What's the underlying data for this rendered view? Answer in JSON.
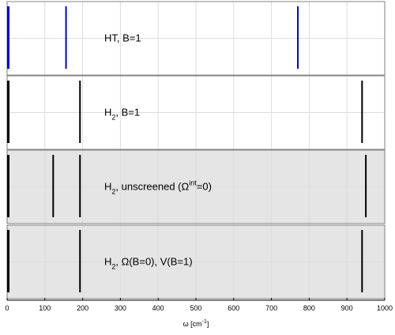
{
  "chart_data": {
    "type": "stacked-stick-spectrum",
    "xlabel_parts": {
      "base": "ω [cm",
      "sup": "-1",
      "end": "]"
    },
    "xlim": [
      0,
      1000
    ],
    "xticks": [
      0,
      100,
      200,
      300,
      400,
      500,
      600,
      700,
      800,
      900,
      1000
    ],
    "grid": true,
    "panels": [
      {
        "label_parts": [
          {
            "t": "HT, B=1"
          }
        ],
        "background": "#ffffff",
        "line_color": "#0000cc",
        "lines": [
          0,
          156,
          770
        ]
      },
      {
        "label_parts": [
          {
            "t": "H"
          },
          {
            "t": "2",
            "sub": true
          },
          {
            "t": ", B=1"
          }
        ],
        "background": "#ffffff",
        "line_color": "#000000",
        "lines": [
          0,
          193,
          940
        ]
      },
      {
        "label_parts": [
          {
            "t": "H"
          },
          {
            "t": "2",
            "sub": true
          },
          {
            "t": ", unscreened (Ω"
          },
          {
            "t": "int",
            "sup": true
          },
          {
            "t": "=0)"
          }
        ],
        "background": "#e5e5e5",
        "line_color": "#000000",
        "lines": [
          0,
          122,
          193,
          950
        ]
      },
      {
        "label_parts": [
          {
            "t": "H"
          },
          {
            "t": "2",
            "sub": true
          },
          {
            "t": ", Ω(B=0), V(B=1)"
          }
        ],
        "background": "#e5e5e5",
        "line_color": "#000000",
        "lines": [
          0,
          193,
          940
        ]
      }
    ]
  }
}
